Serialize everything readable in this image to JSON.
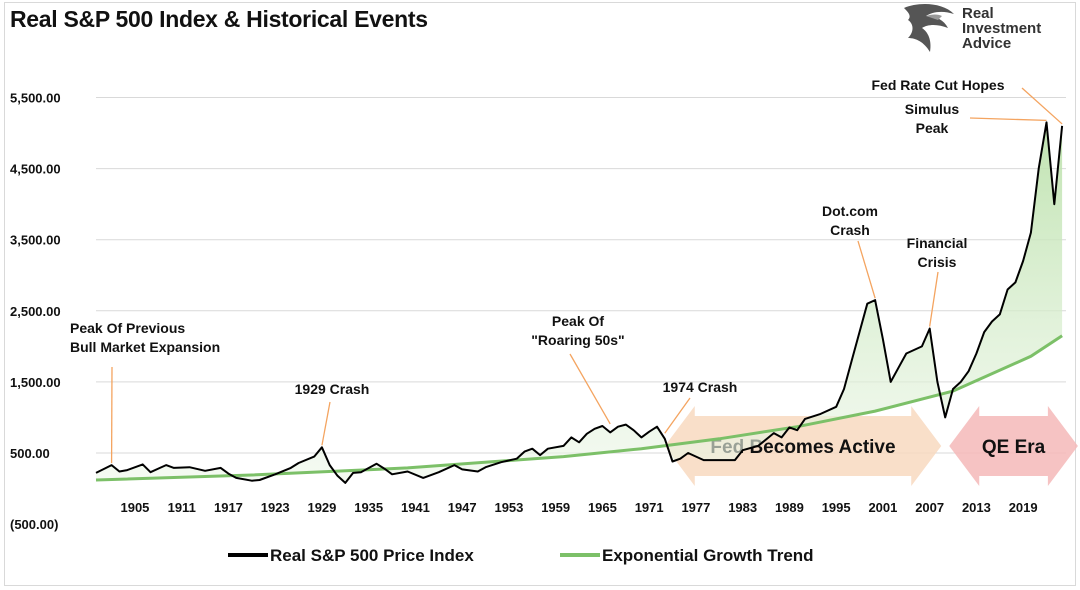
{
  "title": "Real S&P 500 Index & Historical Events",
  "logo": {
    "line1": "Real",
    "line2": "Investment",
    "line3": "Advice",
    "icon": "eagle-head-icon"
  },
  "colors": {
    "price": "#000000",
    "trend": "#7cc068",
    "fill": "#dff0d8",
    "fed_arrow": "#f8d9bf",
    "qe_arrow": "#f4b9b9",
    "annot_line": "#f4a460"
  },
  "chart_data": {
    "type": "line",
    "title": "Real S&P 500 Index & Historical Events",
    "xlabel": "",
    "ylabel": "",
    "xlim": [
      1900,
      2024
    ],
    "ylim": [
      -500,
      6000
    ],
    "y_ticks": [
      -500,
      500,
      1500,
      2500,
      3500,
      4500,
      5500
    ],
    "y_tick_labels": [
      "(500.00)",
      "500.00",
      "1,500.00",
      "2,500.00",
      "3,500.00",
      "4,500.00",
      "5,500.00"
    ],
    "x_ticks": [
      1905,
      1911,
      1917,
      1923,
      1929,
      1935,
      1941,
      1947,
      1953,
      1959,
      1965,
      1971,
      1977,
      1983,
      1989,
      1995,
      2001,
      2007,
      2013,
      2019
    ],
    "grid": "horizontal",
    "legend_placement": "bottom",
    "series": [
      {
        "name": "Real S&P 500 Price Index",
        "x": [
          1900,
          1902,
          1903,
          1904,
          1906,
          1907,
          1908,
          1909,
          1910,
          1912,
          1914,
          1916,
          1917,
          1918,
          1920,
          1921,
          1923,
          1925,
          1926,
          1928,
          1929,
          1930,
          1931,
          1932,
          1933,
          1934,
          1936,
          1937,
          1938,
          1940,
          1942,
          1944,
          1946,
          1947,
          1949,
          1950,
          1952,
          1954,
          1955,
          1956,
          1957,
          1958,
          1960,
          1961,
          1962,
          1963,
          1964,
          1965,
          1966,
          1967,
          1968,
          1969,
          1970,
          1971,
          1972,
          1973,
          1974,
          1975,
          1976,
          1978,
          1980,
          1982,
          1983,
          1985,
          1987,
          1988,
          1989,
          1990,
          1991,
          1993,
          1995,
          1996,
          1997,
          1998,
          1999,
          2000,
          2001,
          2002,
          2003,
          2004,
          2006,
          2007,
          2008,
          2009,
          2010,
          2011,
          2012,
          2013,
          2014,
          2015,
          2016,
          2017,
          2018,
          2019,
          2020,
          2021,
          2022,
          2023,
          2024
        ],
        "values": [
          220,
          330,
          240,
          260,
          340,
          230,
          280,
          330,
          290,
          300,
          250,
          290,
          210,
          150,
          110,
          120,
          200,
          290,
          360,
          450,
          580,
          330,
          180,
          80,
          220,
          230,
          350,
          280,
          200,
          240,
          150,
          230,
          330,
          270,
          240,
          300,
          370,
          420,
          520,
          560,
          470,
          560,
          600,
          720,
          650,
          770,
          840,
          880,
          790,
          870,
          900,
          820,
          720,
          800,
          870,
          700,
          380,
          420,
          500,
          400,
          400,
          400,
          540,
          600,
          780,
          720,
          860,
          820,
          980,
          1050,
          1150,
          1400,
          1800,
          2200,
          2600,
          2650,
          2100,
          1500,
          1700,
          1900,
          2000,
          2250,
          1500,
          1000,
          1400,
          1500,
          1650,
          1900,
          2200,
          2350,
          2450,
          2800,
          2900,
          3200,
          3600,
          4500,
          5150,
          4000,
          5100
        ]
      },
      {
        "name": "Exponential Growth Trend",
        "x": [
          1900,
          1920,
          1940,
          1960,
          1970,
          1980,
          1990,
          2000,
          2010,
          2020,
          2024
        ],
        "values": [
          120,
          190,
          290,
          450,
          560,
          700,
          870,
          1090,
          1370,
          1860,
          2150
        ]
      }
    ],
    "annotations": [
      {
        "text": [
          "Peak Of Previous",
          "Bull Market Expansion"
        ],
        "x": 1902,
        "y": 330
      },
      {
        "text": [
          "1929 Crash"
        ],
        "x": 1929,
        "y": 580
      },
      {
        "text": [
          "Peak Of",
          "\"Roaring 50s\""
        ],
        "x": 1966,
        "y": 880
      },
      {
        "text": [
          "1974 Crash"
        ],
        "x": 1973,
        "y": 750
      },
      {
        "text": [
          "Dot.com",
          "Crash"
        ],
        "x": 2000,
        "y": 2650
      },
      {
        "text": [
          "Financial",
          "Crisis"
        ],
        "x": 2007,
        "y": 2250
      },
      {
        "text": [
          "Fed Rate Cut Hopes"
        ],
        "x": 2024,
        "y": 5100
      },
      {
        "text": [
          "Simulus",
          "Peak"
        ],
        "x": 2022,
        "y": 5150
      }
    ],
    "eras": [
      {
        "label": "Fed Becomes Active",
        "x_start": 1973,
        "x_end": 2009
      },
      {
        "label": "QE Era",
        "x_start": 2009,
        "x_end": 2025
      }
    ]
  }
}
